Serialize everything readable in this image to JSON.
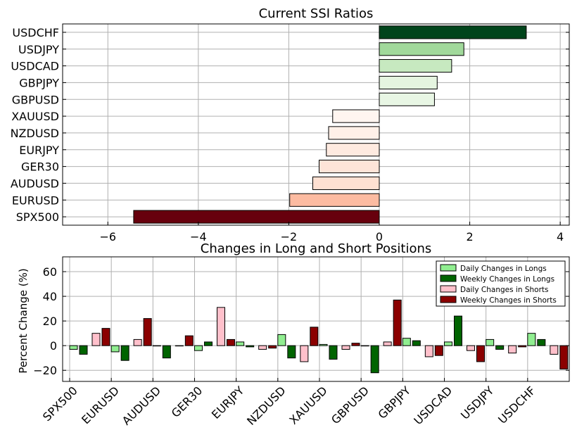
{
  "chart_data": [
    {
      "type": "bar",
      "orientation": "horizontal",
      "title": "Current SSI Ratios",
      "xlabel": "",
      "ylabel": "",
      "categories": [
        "USDCHF",
        "USDJPY",
        "USDCAD",
        "GBPJPY",
        "GBPUSD",
        "XAUUSD",
        "NZDUSD",
        "EURJPY",
        "GER30",
        "AUDUSD",
        "EURUSD",
        "SPX500"
      ],
      "values": [
        3.25,
        1.87,
        1.6,
        1.28,
        1.22,
        -1.03,
        -1.12,
        -1.17,
        -1.33,
        -1.47,
        -1.98,
        -5.43
      ],
      "colors": [
        "#00441b",
        "#a1d99b",
        "#c7e9c0",
        "#e5f5e0",
        "#e8f6e4",
        "#fff5f0",
        "#fff0e8",
        "#feeae0",
        "#fee4d8",
        "#fee0d2",
        "#fcbba1",
        "#67000d"
      ],
      "xlim": [
        -7,
        4.2
      ],
      "xticks": [
        -6,
        -4,
        -2,
        0,
        2,
        4
      ],
      "xtick_labels": [
        "−6",
        "−4",
        "−2",
        "0",
        "2",
        "4"
      ],
      "grid": true
    },
    {
      "type": "bar",
      "title": "Changes in Long and Short Positions",
      "xlabel": "",
      "ylabel": "Percent Change (%)",
      "categories": [
        "SPX500",
        "EURUSD",
        "AUDUSD",
        "GER30",
        "EURJPY",
        "NZDUSD",
        "XAUUSD",
        "GBPUSD",
        "GBPJPY",
        "USDCAD",
        "USDJPY",
        "USDCHF"
      ],
      "series": [
        {
          "name": "Daily Changes in Longs",
          "color": "#90ee90",
          "values": [
            -3,
            -5,
            0,
            -4,
            3,
            9,
            1,
            0,
            6,
            3,
            5,
            10
          ]
        },
        {
          "name": "Weekly Changes in Longs",
          "color": "#006400",
          "values": [
            -7,
            -12,
            -10,
            3,
            -1,
            -10,
            -11,
            -22,
            4,
            24,
            -3,
            5
          ]
        },
        {
          "name": "Daily Changes in Shorts",
          "color": "#ffc0cb",
          "values": [
            10,
            5,
            0,
            31,
            -3,
            -13,
            -3,
            3,
            -9,
            -4,
            -6,
            -7
          ]
        },
        {
          "name": "Weekly Changes in Shorts",
          "color": "#8b0000",
          "values": [
            14,
            22,
            8,
            5,
            -2,
            15,
            2,
            37,
            -8,
            -13,
            -1,
            -19
          ]
        }
      ],
      "ylim": [
        -29,
        72
      ],
      "yticks": [
        -20,
        0,
        20,
        40,
        60
      ],
      "ytick_labels": [
        "−20",
        "0",
        "20",
        "40",
        "60"
      ],
      "grid": true,
      "legend_position": "top-right"
    }
  ]
}
